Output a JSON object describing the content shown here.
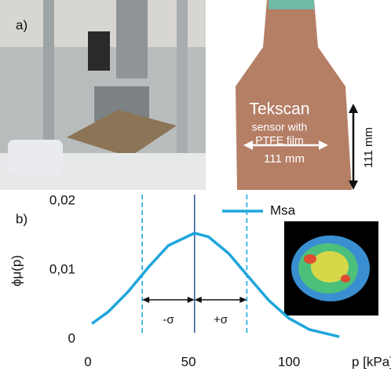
{
  "panel_a": {
    "label": "a)",
    "sensor_lines": [
      "Tekscan",
      "sensor with",
      "PTFE film"
    ],
    "width_label": "111 mm",
    "height_label": "111 mm"
  },
  "chart_data": {
    "type": "line",
    "panel_label": "b)",
    "x_label": "p [kPa]",
    "y_label": "ϕμ(p)",
    "x": [
      2,
      10,
      20,
      30,
      40,
      53,
      60,
      70,
      80,
      90,
      100,
      110,
      125
    ],
    "series": [
      {
        "name": "Msa",
        "color": "#1ea6dc",
        "values": [
          0.00224,
          0.00391,
          0.00686,
          0.01037,
          0.01354,
          0.01534,
          0.01479,
          0.01239,
          0.00895,
          0.00557,
          0.00299,
          0.00139,
          0.00033
        ]
      }
    ],
    "xlim": [
      0,
      130
    ],
    "xticks": [
      0,
      50,
      100
    ],
    "ylim": [
      0,
      0.02
    ],
    "yticks": [
      0,
      {
        "value": 0.01,
        "label": "0,01"
      },
      {
        "value": 0.02,
        "label": "0,02"
      }
    ],
    "mean_line": 53,
    "sigma_lines": [
      27,
      79
    ],
    "annotations": [
      "-σ",
      "+σ"
    ],
    "grid": false
  }
}
